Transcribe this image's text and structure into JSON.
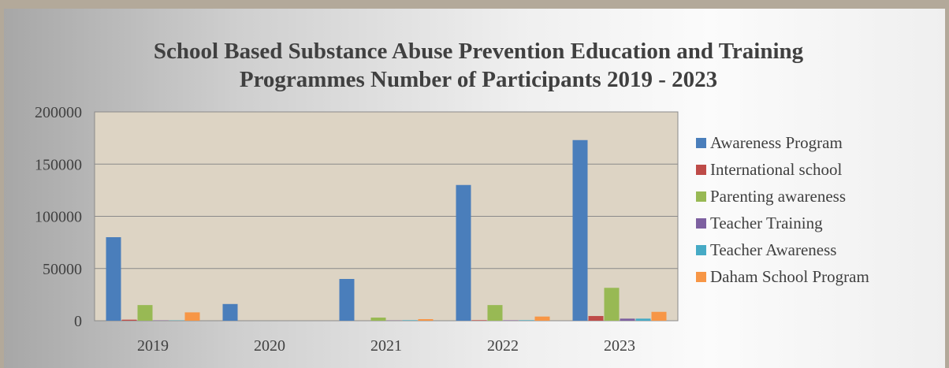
{
  "chart_data": {
    "type": "bar",
    "title": "School Based Substance Abuse Prevention Education and Training",
    "subtitle": "Programmes Number of Participants   2019 - 2023",
    "xlabel": "",
    "ylabel": "",
    "categories": [
      "2019",
      "2020",
      "2021",
      "2022",
      "2023"
    ],
    "ylim": [
      0,
      200000
    ],
    "yticks": [
      "0",
      "50000",
      "100000",
      "150000",
      "200000"
    ],
    "grid": true,
    "legend_position": "right",
    "series": [
      {
        "name": "Awareness Program",
        "color": "#4a7ebb",
        "values": [
          80000,
          16000,
          40000,
          130000,
          173000
        ]
      },
      {
        "name": "International school",
        "color": "#be4b48",
        "values": [
          1000,
          0,
          0,
          500,
          4500
        ]
      },
      {
        "name": "Parenting awareness",
        "color": "#98b954",
        "values": [
          15000,
          0,
          3000,
          15000,
          31500
        ]
      },
      {
        "name": "Teacher Training",
        "color": "#7d60a0",
        "values": [
          300,
          0,
          200,
          400,
          2000
        ]
      },
      {
        "name": "Teacher Awareness",
        "color": "#46aac5",
        "values": [
          300,
          0,
          500,
          500,
          2000
        ]
      },
      {
        "name": "Daham School Program",
        "color": "#f79646",
        "values": [
          8000,
          0,
          1500,
          4000,
          8500
        ]
      }
    ]
  }
}
